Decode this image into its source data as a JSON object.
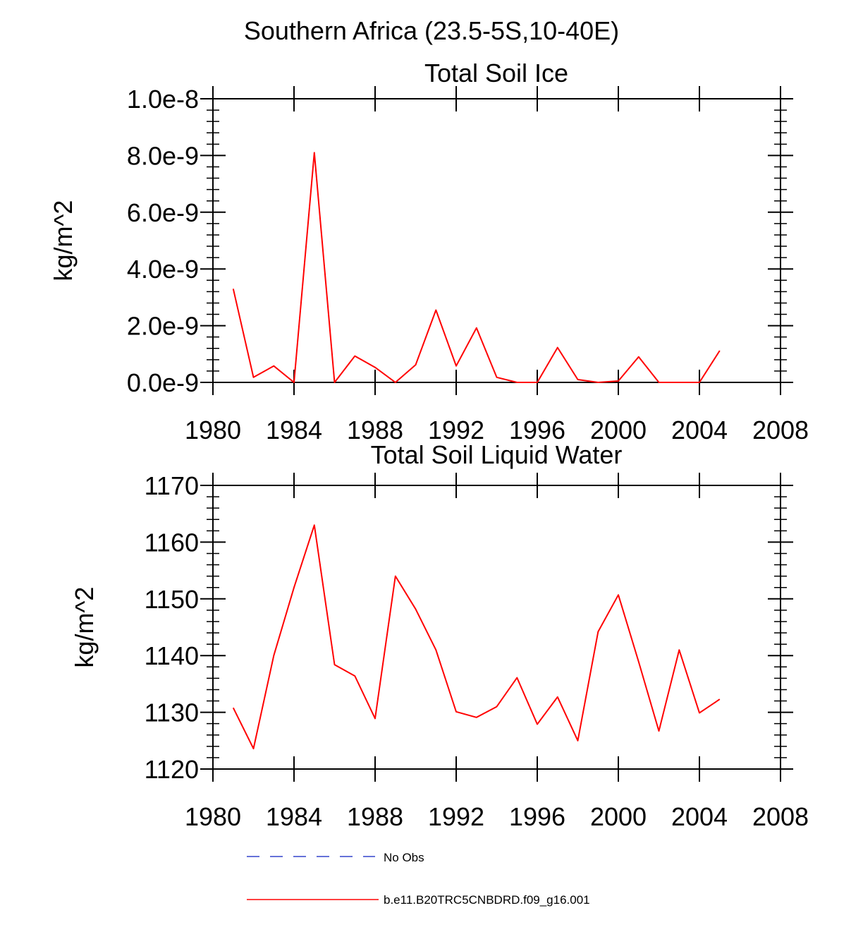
{
  "figure_title": "Southern Africa (23.5-5S,10-40E)",
  "chart_data": [
    {
      "type": "line",
      "title": "Total Soil Ice",
      "xlabel": "",
      "ylabel": "kg/m^2",
      "xlim": [
        1980,
        2008
      ],
      "ylim": [
        0,
        1e-08
      ],
      "x_ticks": [
        1980,
        1984,
        1988,
        1992,
        1996,
        2000,
        2004,
        2008
      ],
      "x_tick_labels": [
        "1980",
        "1984",
        "1988",
        "1992",
        "1996",
        "2000",
        "2004",
        "2008"
      ],
      "y_ticks": [
        0,
        2e-09,
        4e-09,
        6e-09,
        8e-09,
        1e-08
      ],
      "y_tick_labels": [
        "0.0e-9",
        "2.0e-9",
        "4.0e-9",
        "6.0e-9",
        "8.0e-9",
        "1.0e-8"
      ],
      "series": [
        {
          "name": "b.e11.B20TRC5CNBDRD.f09_g16.001",
          "color": "#ff0000",
          "x": [
            1981,
            1982,
            1983,
            1984,
            1985,
            1986,
            1987,
            1988,
            1989,
            1990,
            1991,
            1992,
            1993,
            1994,
            1995,
            1996,
            1997,
            1998,
            1999,
            2000,
            2001,
            2002,
            2003,
            2004,
            2005
          ],
          "values": [
            3.3e-09,
            1.8e-10,
            5.8e-10,
            0.0,
            8.1e-09,
            0.0,
            9.3e-10,
            5.3e-10,
            0.0,
            6.2e-10,
            2.55e-09,
            5.8e-10,
            1.92e-09,
            1.8e-10,
            0.0,
            0.0,
            1.23e-09,
            1e-10,
            0.0,
            5e-11,
            9e-10,
            0.0,
            0.0,
            0.0,
            1.12e-09
          ]
        }
      ]
    },
    {
      "type": "line",
      "title": "Total Soil Liquid Water",
      "xlabel": "",
      "ylabel": "kg/m^2",
      "xlim": [
        1980,
        2008
      ],
      "ylim": [
        1120,
        1170
      ],
      "x_ticks": [
        1980,
        1984,
        1988,
        1992,
        1996,
        2000,
        2004,
        2008
      ],
      "x_tick_labels": [
        "1980",
        "1984",
        "1988",
        "1992",
        "1996",
        "2000",
        "2004",
        "2008"
      ],
      "y_ticks": [
        1120,
        1130,
        1140,
        1150,
        1160,
        1170
      ],
      "y_tick_labels": [
        "1120",
        "1130",
        "1140",
        "1150",
        "1160",
        "1170"
      ],
      "series": [
        {
          "name": "b.e11.B20TRC5CNBDRD.f09_g16.001",
          "color": "#ff0000",
          "x": [
            1981,
            1982,
            1983,
            1984,
            1985,
            1986,
            1987,
            1988,
            1989,
            1990,
            1991,
            1992,
            1993,
            1994,
            1995,
            1996,
            1997,
            1998,
            1999,
            2000,
            2001,
            2002,
            2003,
            2004,
            2005
          ],
          "values": [
            1130.8,
            1123.6,
            1140.0,
            1152.0,
            1163.0,
            1138.4,
            1136.4,
            1128.9,
            1154.0,
            1148.2,
            1141.0,
            1130.1,
            1129.1,
            1131.0,
            1136.1,
            1127.9,
            1132.7,
            1125.0,
            1144.2,
            1150.7,
            1138.9,
            1126.7,
            1141.0,
            1129.9,
            1132.3
          ]
        }
      ]
    }
  ],
  "legend": [
    {
      "label": "No Obs",
      "color": "#3344cc",
      "dash": "dashed"
    },
    {
      "label": "b.e11.B20TRC5CNBDRD.f09_g16.001",
      "color": "#ff0000",
      "dash": "solid"
    }
  ]
}
